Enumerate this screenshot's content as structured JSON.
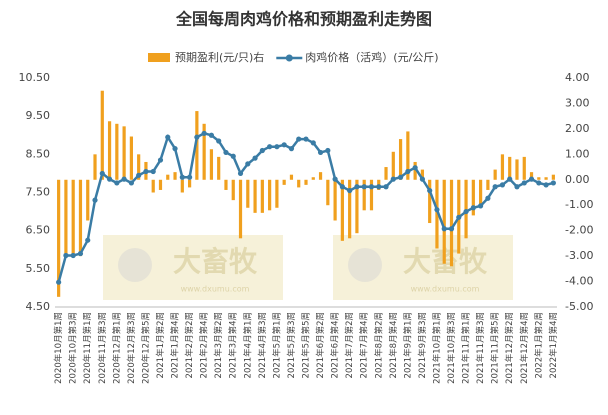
{
  "chart_data": {
    "type": "bar-line",
    "title": "全国每周肉鸡价格和预期盈利走势图",
    "categories": [
      "2020年10月第1周",
      null,
      "2020年10月第3周",
      null,
      "2020年11月第1周",
      null,
      "2020年11月第3周",
      null,
      "2020年12月第1周",
      null,
      "2020年12月第3周",
      null,
      "2020年12月第5周",
      null,
      "2021年1月第2周",
      null,
      "2021年1月第4周",
      null,
      "2021年2月第2周",
      null,
      "2021年2月第4周",
      null,
      "2021年3月第2周",
      null,
      "2021年3月第4周",
      null,
      "2021年4月第1周",
      null,
      "2021年4月第3周",
      null,
      "2021年5月第1周",
      null,
      "2021年5月第3周",
      null,
      "2021年5月第5周",
      null,
      "2021年6月第2周",
      null,
      "2021年6月第4周",
      null,
      "2021年7月第2周",
      null,
      "2021年7月第4周",
      null,
      "2021年8月第2周",
      null,
      "2021年8月第4周",
      null,
      "2021年9月第1周",
      null,
      "2021年9月第3周",
      null,
      "2021年10月第1周",
      null,
      "2021年10月第3周",
      null,
      "2021年11月第1周",
      null,
      "2021年11月第3周",
      null,
      "2021年11月第5周",
      null,
      "2021年12月第2周",
      null,
      "2021年12月第4周",
      null,
      "2022年1月第2周",
      null,
      "2022年1月第4周"
    ],
    "series": [
      {
        "name": "预期盈利(元/只)右",
        "color": "#f0a01e",
        "type": "bar",
        "axis": "y2",
        "values": [
          -4.6,
          -3.0,
          -3.0,
          -3.0,
          -1.6,
          1.0,
          3.5,
          2.3,
          2.2,
          2.1,
          1.7,
          1.0,
          0.7,
          -0.5,
          -0.4,
          0.2,
          0.3,
          -0.5,
          -0.3,
          2.7,
          2.2,
          1.2,
          0.9,
          -0.4,
          -0.8,
          -2.3,
          -1.1,
          -1.3,
          -1.3,
          -1.2,
          -1.1,
          -0.2,
          0.2,
          -0.3,
          -0.2,
          0.1,
          0.3,
          -1.0,
          -1.6,
          -2.4,
          -2.3,
          -2.1,
          -1.2,
          -1.2,
          -0.4,
          0.5,
          1.1,
          1.6,
          1.9,
          0.7,
          0.4,
          -1.7,
          -2.7,
          -3.3,
          -3.4,
          -2.9,
          -2.3,
          -1.4,
          -1.0,
          -0.4,
          0.4,
          1.0,
          0.9,
          0.8,
          0.9,
          0.3,
          0.1,
          0.1,
          0.2
        ]
      },
      {
        "name": "肉鸡价格（活鸡）(元/公斤)",
        "color": "#3a7ca5",
        "type": "line",
        "axis": "y",
        "values": [
          5.15,
          5.85,
          5.85,
          5.9,
          6.25,
          7.3,
          8.0,
          7.85,
          7.75,
          7.85,
          7.75,
          7.95,
          8.05,
          8.05,
          8.35,
          8.95,
          8.65,
          7.9,
          7.9,
          8.95,
          9.05,
          9.0,
          8.85,
          8.55,
          8.45,
          8.0,
          8.25,
          8.4,
          8.6,
          8.7,
          8.7,
          8.75,
          8.65,
          8.9,
          8.9,
          8.8,
          8.55,
          8.6,
          7.85,
          7.65,
          7.55,
          7.65,
          7.65,
          7.65,
          7.65,
          7.65,
          7.85,
          7.9,
          8.05,
          8.15,
          7.85,
          7.55,
          7.05,
          6.55,
          6.55,
          6.85,
          7.0,
          7.1,
          7.15,
          7.35,
          7.65,
          7.7,
          7.85,
          7.65,
          7.75,
          7.85,
          7.75,
          7.7,
          7.75
        ]
      }
    ],
    "ylim": [
      4.5,
      10.5
    ],
    "yticks": [
      {
        "value": 4.5,
        "label": "4.50"
      },
      {
        "value": 5.5,
        "label": "5.50"
      },
      {
        "value": 6.5,
        "label": "6.50"
      },
      {
        "value": 7.5,
        "label": "7.50"
      },
      {
        "value": 8.5,
        "label": "8.50"
      },
      {
        "value": 9.5,
        "label": "9.50"
      },
      {
        "value": 10.5,
        "label": "10.50"
      }
    ],
    "y2lim": [
      -5,
      4
    ],
    "y2ticks": [
      {
        "value": -5,
        "label": "-5.00"
      },
      {
        "value": -4,
        "label": "-4.00"
      },
      {
        "value": -3,
        "label": "-3.00"
      },
      {
        "value": -2,
        "label": "-2.00"
      },
      {
        "value": -1,
        "label": "-1.00"
      },
      {
        "value": 0,
        "label": "0.00"
      },
      {
        "value": 1,
        "label": "1.00"
      },
      {
        "value": 2,
        "label": "2.00"
      },
      {
        "value": 3,
        "label": "3.00"
      },
      {
        "value": 4,
        "label": "4.00"
      }
    ],
    "grid": false,
    "legend": "top",
    "watermarks": [
      "大畜牧",
      "www.dxumu.com"
    ]
  }
}
